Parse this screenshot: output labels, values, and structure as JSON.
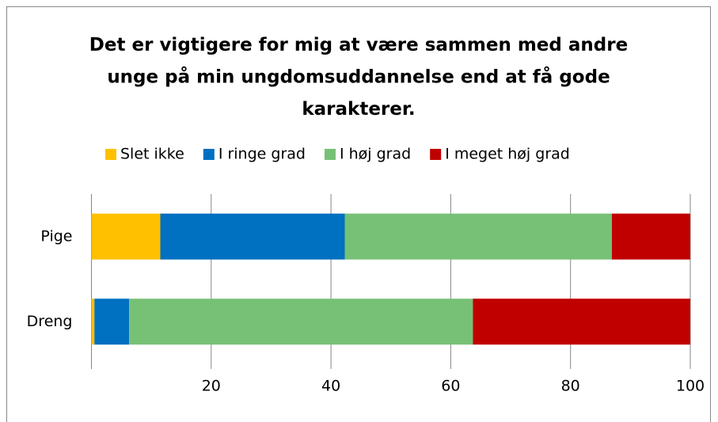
{
  "chart_data": {
    "type": "stacked-barh",
    "title": "Det er vigtigere for mig at være sammen med andre unge på min ungdomsuddannelse end at få gode karakterer.",
    "categories": [
      "Pige",
      "Dreng"
    ],
    "series": [
      {
        "name": "Slet ikke",
        "color": "#ffc000",
        "values": [
          11.5,
          0.5
        ]
      },
      {
        "name": "I ringe grad",
        "color": "#0070c0",
        "values": [
          30.8,
          5.8
        ]
      },
      {
        "name": "I høj grad",
        "color": "#77c177",
        "values": [
          44.6,
          57.4
        ]
      },
      {
        "name": "I meget høj grad",
        "color": "#c00000",
        "values": [
          13.1,
          36.3
        ]
      }
    ],
    "xlim": [
      0,
      100
    ],
    "xticks": [
      20,
      40,
      60,
      80,
      100
    ],
    "grid": true,
    "legend": "top"
  }
}
